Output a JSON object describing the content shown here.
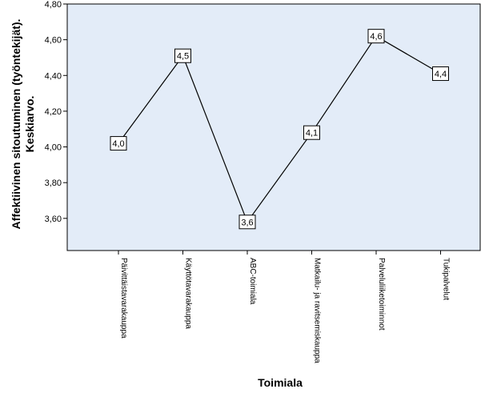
{
  "chart_data": {
    "type": "line",
    "categories": [
      "Päivittäistavarakauppa",
      "Käyttötavarakauppa",
      "ABC-toimiala",
      "Matkailu- ja ravitsemiskauppa",
      "Palveluliiketoiminnot",
      "Tukipalvelut"
    ],
    "values": [
      4.02,
      4.51,
      3.58,
      4.08,
      4.62,
      4.41
    ],
    "data_labels": [
      "4,0",
      "4,5",
      "3,6",
      "4,1",
      "4,6",
      "4,4"
    ],
    "xlabel": "Toimiala",
    "ylabel_lines": [
      "Affektiivinen sitoutuminen (työntekijät).",
      "Keskiarvo."
    ],
    "ylim": [
      3.42,
      4.8
    ],
    "yticks": [
      3.6,
      3.8,
      4.0,
      4.2,
      4.4,
      4.6,
      4.8
    ],
    "ytick_labels": [
      "3,60",
      "3,80",
      "4,00",
      "4,20",
      "4,40",
      "4,60",
      "4,80"
    ],
    "grid": false,
    "colors": {
      "plot_background": "#e3ecf8",
      "line": "#000000",
      "frame": "#000000"
    }
  }
}
